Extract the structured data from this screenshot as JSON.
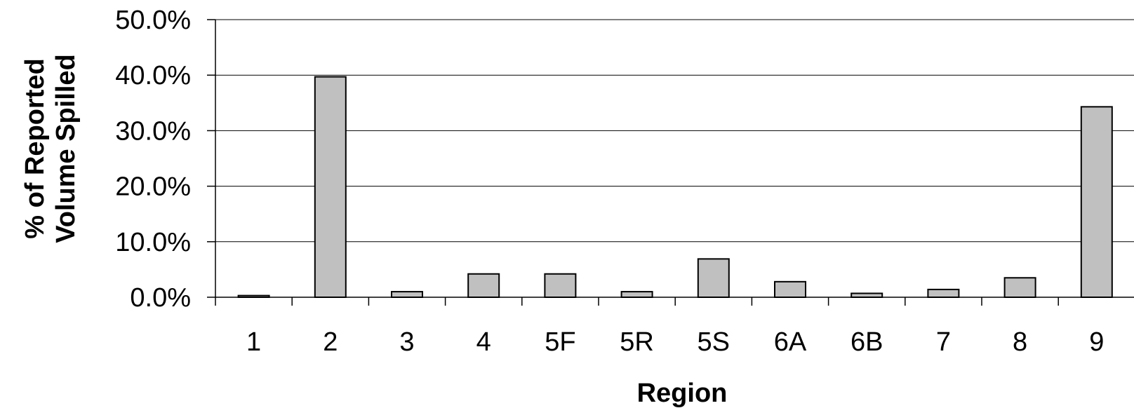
{
  "chart_data": {
    "type": "bar",
    "title": "",
    "xlabel": "Region",
    "ylabel_lines": [
      "% of Reported",
      "Volume Spilled"
    ],
    "categories": [
      "1",
      "2",
      "3",
      "4",
      "5F",
      "5R",
      "5S",
      "6A",
      "6B",
      "7",
      "8",
      "9"
    ],
    "series": [
      {
        "values": [
          0.3,
          39.7,
          1.0,
          4.2,
          4.2,
          1.0,
          6.9,
          2.8,
          0.7,
          1.4,
          3.5,
          34.3
        ]
      }
    ],
    "ylim": [
      0,
      50
    ],
    "yticks": [
      0,
      10,
      20,
      30,
      40,
      50
    ],
    "ytick_labels": [
      "0.0%",
      "10.0%",
      "20.0%",
      "30.0%",
      "40.0%",
      "50.0%"
    ],
    "grid": true,
    "legend": "none",
    "bar_color": "#c0c0c0"
  }
}
